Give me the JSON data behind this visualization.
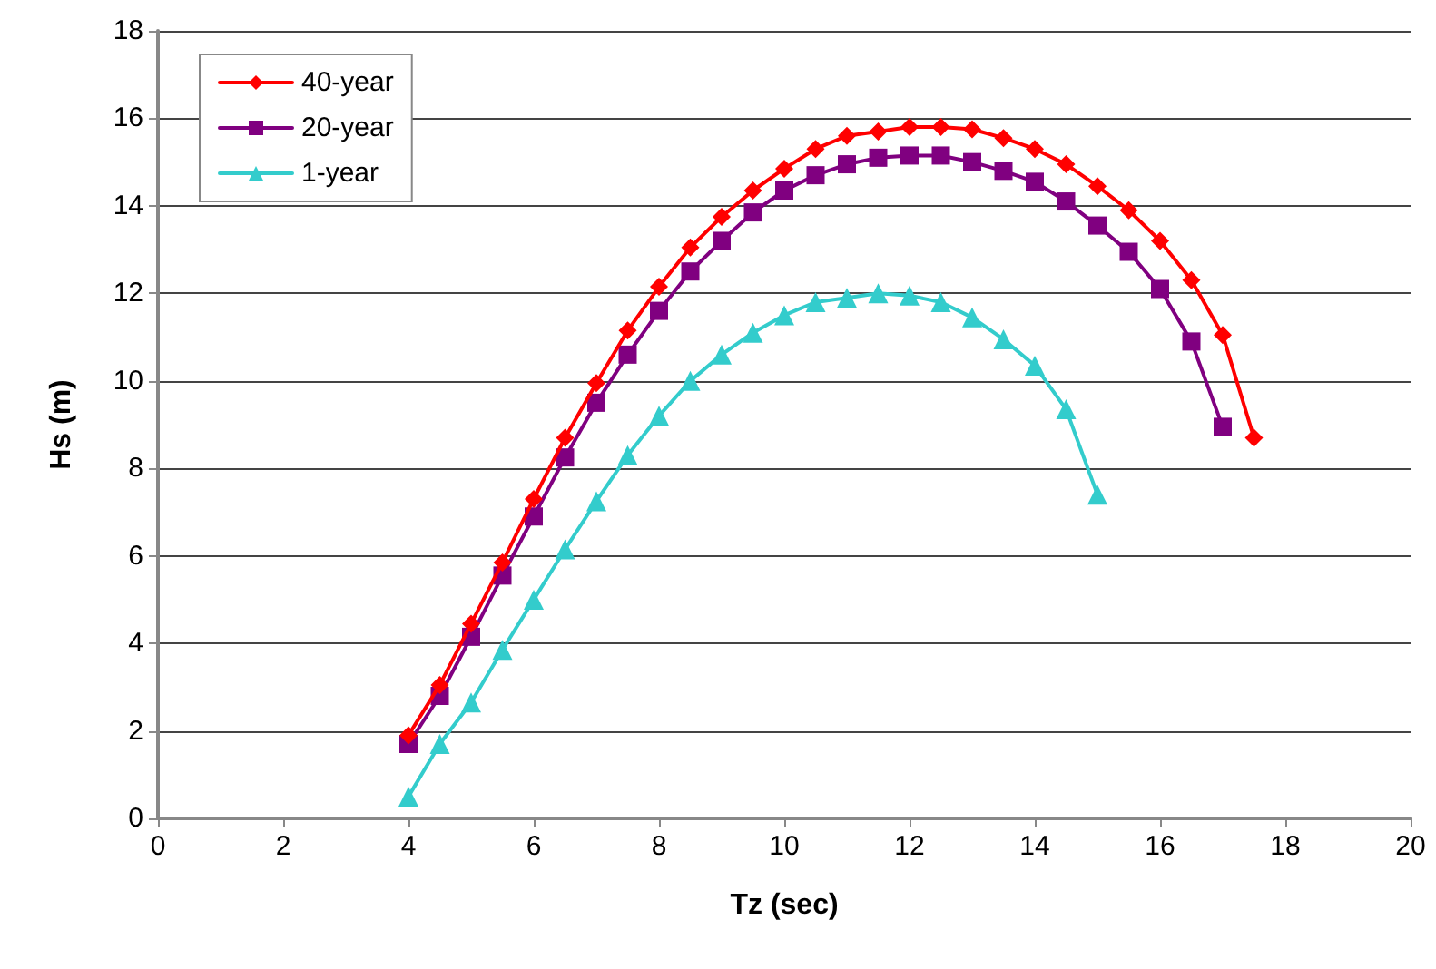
{
  "chart_data": {
    "type": "line",
    "xlabel": "Tz (sec)",
    "ylabel": "Hs (m)",
    "xlim": [
      0,
      20
    ],
    "xticks": [
      0,
      2,
      4,
      6,
      8,
      10,
      12,
      14,
      16,
      18,
      20
    ],
    "ylim": [
      0,
      18
    ],
    "yticks": [
      0,
      2,
      4,
      6,
      8,
      10,
      12,
      14,
      16,
      18
    ],
    "grid": "y",
    "legend": "top left",
    "line_style": "solid",
    "series": [
      {
        "name": "40-year",
        "color": "#ff0000",
        "marker": "diamond",
        "x": [
          4,
          4.5,
          5,
          5.5,
          6,
          6.5,
          7,
          7.5,
          8,
          8.5,
          9,
          9.5,
          10,
          10.5,
          11,
          11.5,
          12,
          12.5,
          13,
          13.5,
          14,
          14.5,
          15,
          15.5,
          16,
          16.5,
          17,
          17.5
        ],
        "values": [
          1.9,
          3.05,
          4.45,
          5.85,
          7.3,
          8.7,
          9.95,
          11.15,
          12.15,
          13.05,
          13.75,
          14.35,
          14.85,
          15.3,
          15.6,
          15.7,
          15.8,
          15.8,
          15.75,
          15.55,
          15.3,
          14.95,
          14.45,
          13.9,
          13.2,
          12.3,
          11.05,
          8.7
        ]
      },
      {
        "name": "20-year",
        "color": "#800080",
        "marker": "square",
        "x": [
          4,
          4.5,
          5,
          5.5,
          6,
          6.5,
          7,
          7.5,
          8,
          8.5,
          9,
          9.5,
          10,
          10.5,
          11,
          11.5,
          12,
          12.5,
          13,
          13.5,
          14,
          14.5,
          15,
          15.5,
          16,
          16.5,
          17
        ],
        "values": [
          1.7,
          2.8,
          4.15,
          5.55,
          6.9,
          8.25,
          9.5,
          10.6,
          11.6,
          12.5,
          13.2,
          13.85,
          14.35,
          14.7,
          14.95,
          15.1,
          15.15,
          15.15,
          15.0,
          14.8,
          14.55,
          14.1,
          13.55,
          12.95,
          12.1,
          10.9,
          8.95
        ]
      },
      {
        "name": "1-year",
        "color": "#33cccc",
        "marker": "triangle",
        "x": [
          4,
          4.5,
          5,
          5.5,
          6,
          6.5,
          7,
          7.5,
          8,
          8.5,
          9,
          9.5,
          10,
          10.5,
          11,
          11.5,
          12,
          12.5,
          13,
          13.5,
          14,
          14.5,
          15
        ],
        "values": [
          0.5,
          1.7,
          2.65,
          3.85,
          5.0,
          6.15,
          7.25,
          8.3,
          9.2,
          10.0,
          10.6,
          11.1,
          11.5,
          11.8,
          11.9,
          12.0,
          11.95,
          11.8,
          11.45,
          10.95,
          10.35,
          9.35,
          7.4
        ]
      }
    ]
  }
}
